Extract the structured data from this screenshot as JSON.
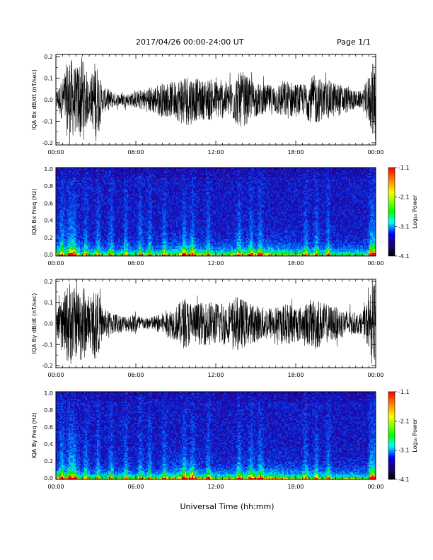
{
  "header": {
    "title": "2017/04/26  00:00-24:00 UT",
    "page": "Page 1/1"
  },
  "xaxis_title": "Universal Time (hh:mm)",
  "colorbar": {
    "label": "Log₁₀ Power",
    "ticks": [
      "-1.1",
      "-2.1",
      "-3.1",
      "-4.1"
    ],
    "colors": [
      "#ff0000",
      "#ffff00",
      "#00ff00",
      "#00ffff",
      "#0000ff",
      "#200060",
      "#000000"
    ]
  },
  "chart_data": [
    {
      "type": "line",
      "title": "",
      "xlabel": "",
      "ylabel": "IQA Bx dB/dt (nT/sec)",
      "x_ticks": [
        "00:00",
        "06:00",
        "12:00",
        "18:00",
        "00:00"
      ],
      "y_ticks": [
        "0.2",
        "0.1",
        "0.0",
        "-0.1",
        "-0.2"
      ],
      "xlim": [
        "00:00",
        "24:00"
      ],
      "ylim": [
        -0.21,
        0.21
      ],
      "series": [
        {
          "x_hours": [
            0,
            0.5,
            1,
            1.5,
            2,
            2.5,
            3,
            3.5,
            4,
            4.5,
            5,
            5.5,
            6,
            6.5,
            7,
            7.5,
            8,
            8.5,
            9,
            9.5,
            10,
            10.5,
            11,
            11.5,
            12,
            12.5,
            13,
            13.5,
            14,
            14.5,
            15,
            15.5,
            16,
            16.5,
            17,
            17.5,
            18,
            18.5,
            19,
            19.5,
            20,
            20.5,
            21,
            21.5,
            22,
            22.5,
            23,
            23.5,
            24
          ],
          "envelope": [
            0.04,
            0.1,
            0.21,
            0.15,
            0.21,
            0.08,
            0.2,
            0.06,
            0.05,
            0.03,
            0.03,
            0.03,
            0.04,
            0.05,
            0.06,
            0.07,
            0.08,
            0.08,
            0.09,
            0.12,
            0.12,
            0.1,
            0.09,
            0.1,
            0.09,
            0.09,
            0.08,
            0.12,
            0.13,
            0.1,
            0.08,
            0.07,
            0.07,
            0.07,
            0.09,
            0.09,
            0.08,
            0.07,
            0.1,
            0.12,
            0.09,
            0.09,
            0.08,
            0.07,
            0.06,
            0.04,
            0.04,
            0.12,
            0.21
          ]
        }
      ]
    },
    {
      "type": "heatmap",
      "title": "",
      "xlabel": "",
      "ylabel": "IQA Bx Freq (Hz)",
      "x_ticks": [
        "00:00",
        "06:00",
        "12:00",
        "18:00",
        "00:00"
      ],
      "y_ticks": [
        "1.0",
        "0.8",
        "0.6",
        "0.4",
        "0.2",
        "0.0"
      ],
      "xlim": [
        "00:00",
        "24:00"
      ],
      "ylim": [
        0.0,
        1.0
      ],
      "colorbar_range": [
        -4.1,
        -1.1
      ]
    },
    {
      "type": "line",
      "title": "",
      "xlabel": "",
      "ylabel": "IQA By dB/dt (nT/sec)",
      "x_ticks": [
        "00:00",
        "06:00",
        "12:00",
        "18:00",
        "00:00"
      ],
      "y_ticks": [
        "0.2",
        "0.1",
        "0.0",
        "-0.1",
        "-0.2"
      ],
      "xlim": [
        "00:00",
        "24:00"
      ],
      "ylim": [
        -0.21,
        0.21
      ],
      "series": [
        {
          "x_hours": [
            0,
            0.5,
            1,
            1.5,
            2,
            2.5,
            3,
            3.5,
            4,
            4.5,
            5,
            5.5,
            6,
            6.5,
            7,
            7.5,
            8,
            8.5,
            9,
            9.5,
            10,
            10.5,
            11,
            11.5,
            12,
            12.5,
            13,
            13.5,
            14,
            14.5,
            15,
            15.5,
            16,
            16.5,
            17,
            17.5,
            18,
            18.5,
            19,
            19.5,
            20,
            20.5,
            21,
            21.5,
            22,
            22.5,
            23,
            23.5,
            24
          ],
          "envelope": [
            0.05,
            0.12,
            0.21,
            0.16,
            0.2,
            0.1,
            0.19,
            0.07,
            0.06,
            0.05,
            0.04,
            0.04,
            0.05,
            0.03,
            0.03,
            0.04,
            0.05,
            0.07,
            0.08,
            0.12,
            0.11,
            0.1,
            0.1,
            0.11,
            0.1,
            0.11,
            0.09,
            0.13,
            0.12,
            0.1,
            0.09,
            0.08,
            0.08,
            0.08,
            0.09,
            0.1,
            0.09,
            0.08,
            0.11,
            0.13,
            0.1,
            0.09,
            0.08,
            0.07,
            0.06,
            0.05,
            0.05,
            0.13,
            0.21
          ]
        }
      ]
    },
    {
      "type": "heatmap",
      "title": "",
      "xlabel": "",
      "ylabel": "IQA By Freq (Hz)",
      "x_ticks": [
        "00:00",
        "06:00",
        "12:00",
        "18:00",
        "00:00"
      ],
      "y_ticks": [
        "1.0",
        "0.8",
        "0.6",
        "0.4",
        "0.2",
        "0.0"
      ],
      "xlim": [
        "00:00",
        "24:00"
      ],
      "ylim": [
        0.0,
        1.0
      ],
      "colorbar_range": [
        -4.1,
        -1.1
      ]
    }
  ]
}
